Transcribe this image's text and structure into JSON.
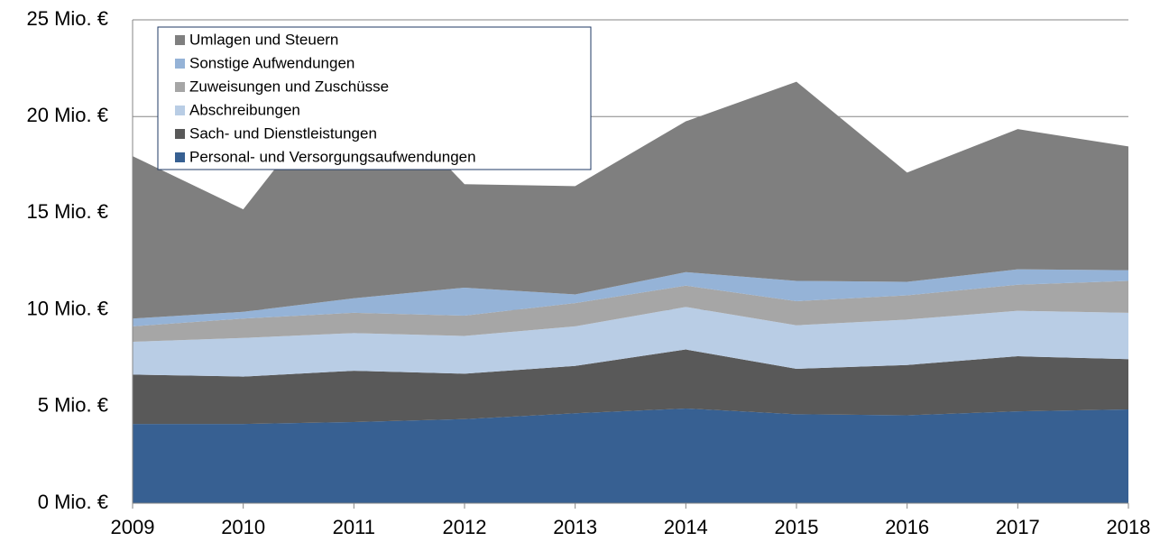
{
  "chart_data": {
    "type": "stacked_area",
    "categories": [
      "2009",
      "2010",
      "2011",
      "2012",
      "2013",
      "2014",
      "2015",
      "2016",
      "2017",
      "2018"
    ],
    "series": [
      {
        "name": "Personal- und Versorgungsaufwendungen",
        "color": "#376092",
        "values": [
          4.1,
          4.1,
          4.2,
          4.35,
          4.65,
          4.9,
          4.6,
          4.55,
          4.75,
          4.85
        ]
      },
      {
        "name": "Sach- und Dienstleistungen",
        "color": "#595959",
        "values": [
          2.55,
          2.45,
          2.65,
          2.35,
          2.45,
          3.05,
          2.35,
          2.6,
          2.85,
          2.6
        ]
      },
      {
        "name": "Abschreibungen",
        "color": "#b9cde5",
        "values": [
          1.7,
          2.0,
          1.95,
          1.95,
          2.05,
          2.2,
          2.25,
          2.35,
          2.35,
          2.4
        ]
      },
      {
        "name": "Zuweisungen und Zuschüsse",
        "color": "#a6a6a6",
        "values": [
          0.8,
          1.0,
          1.05,
          1.05,
          1.2,
          1.1,
          1.25,
          1.25,
          1.35,
          1.65
        ]
      },
      {
        "name": "Sonstige Aufwendungen",
        "color": "#95b3d7",
        "values": [
          0.4,
          0.35,
          0.75,
          1.45,
          0.45,
          0.7,
          1.05,
          0.7,
          0.8,
          0.55
        ]
      },
      {
        "name": "Umlagen und Steuern",
        "color": "#7f7f7f",
        "values": [
          8.4,
          5.3,
          11.9,
          5.35,
          5.6,
          7.8,
          10.3,
          5.65,
          7.25,
          6.4
        ]
      }
    ],
    "ylim": [
      0,
      25
    ],
    "yticks": [
      {
        "value": 0,
        "label": "0 Mio. €"
      },
      {
        "value": 5,
        "label": "5 Mio. €"
      },
      {
        "value": 10,
        "label": "10 Mio. €"
      },
      {
        "value": 15,
        "label": "15 Mio. €"
      },
      {
        "value": 20,
        "label": "20 Mio. €"
      },
      {
        "value": 25,
        "label": "25 Mio. €"
      }
    ],
    "grid": true,
    "legend": "top-left"
  }
}
